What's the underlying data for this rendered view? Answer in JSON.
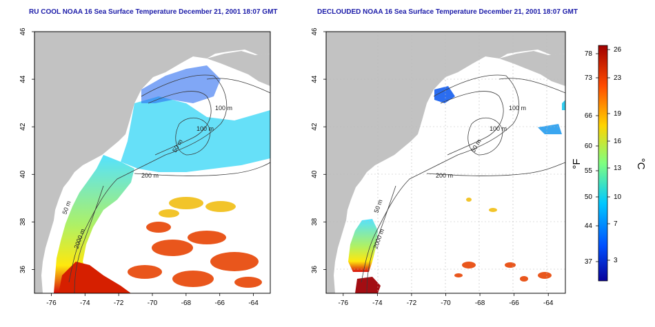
{
  "panels": [
    {
      "title": "RU COOL NOAA 16 Sea Surface Temperature December 21, 2001 18:07 GMT",
      "contour_labels": [
        "100 m",
        "100 m",
        "50 m",
        "200 m",
        "50 m",
        "2000 m"
      ]
    },
    {
      "title": "DECLOUDED NOAA 16 Sea Surface Temperature December 21, 2001 18:07 GMT",
      "contour_labels": [
        "100 m",
        "100 m",
        "50 m",
        "200 m",
        "50 m",
        "2000 m"
      ]
    }
  ],
  "axes": {
    "x_ticks": [
      "-76",
      "-74",
      "-72",
      "-70",
      "-68",
      "-66",
      "-64"
    ],
    "y_ticks": [
      "46",
      "44",
      "42",
      "40",
      "38",
      "36"
    ],
    "x_range": [
      -77,
      -63
    ],
    "y_range": [
      35,
      46
    ]
  },
  "colorbar": {
    "fahrenheit_ticks": [
      "78",
      "73",
      "66",
      "60",
      "55",
      "50",
      "44",
      "37"
    ],
    "celsius_ticks": [
      "26",
      "23",
      "19",
      "16",
      "13",
      "10",
      "7",
      "3"
    ],
    "fahrenheit_unit": "°F",
    "celsius_unit": "°C",
    "colors": [
      "#07009a",
      "#0050ff",
      "#00c8ff",
      "#7fff80",
      "#ffd400",
      "#ff4b00",
      "#a00000"
    ]
  },
  "colors": {
    "land": "#c2c2c2",
    "ocean": "#ffffff",
    "contour": "#3a3a3a",
    "title": "#1a1aa8"
  }
}
